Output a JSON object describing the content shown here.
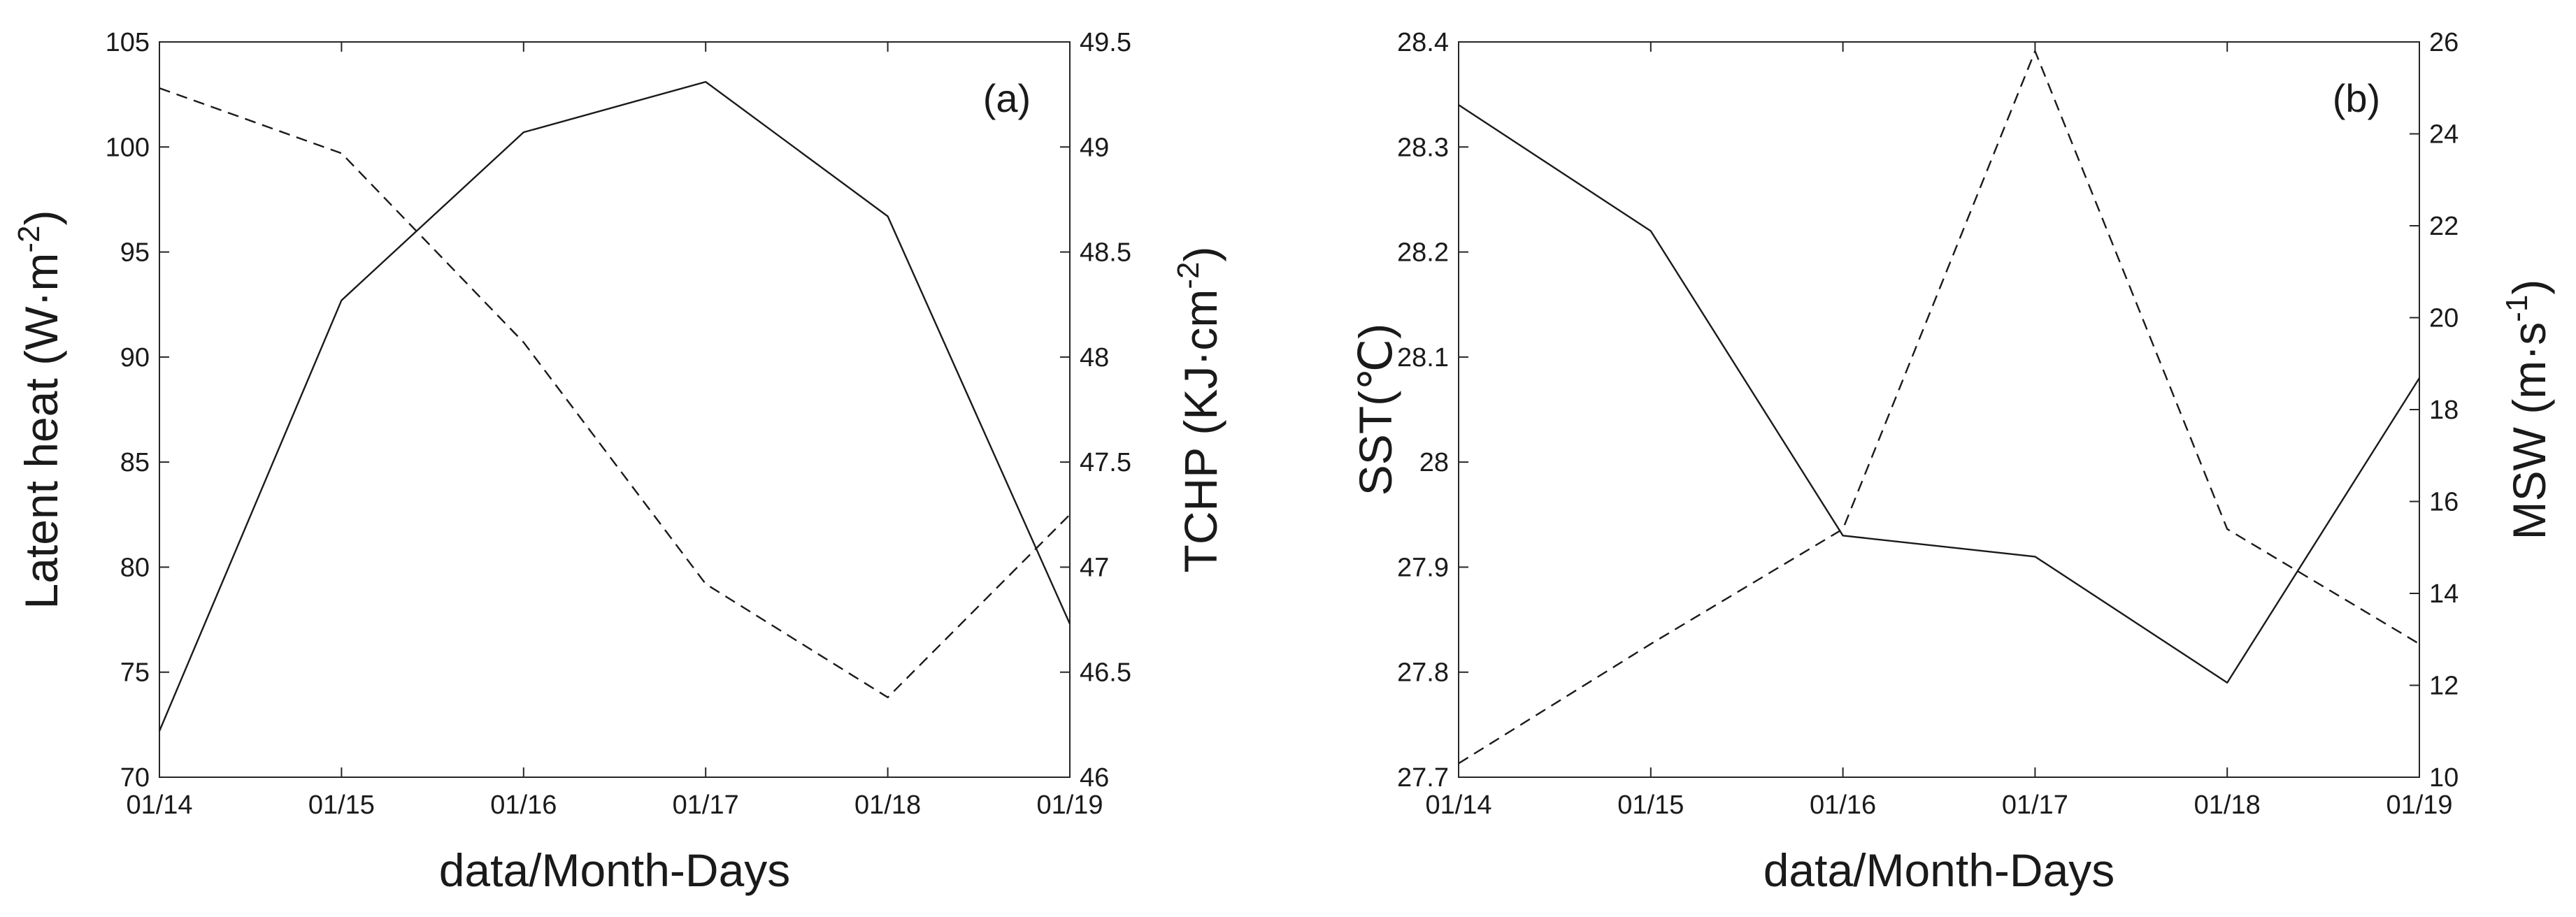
{
  "chart_data": [
    {
      "panel_label": "(a)",
      "type": "line",
      "categories": [
        "01/14",
        "01/15",
        "01/16",
        "01/17",
        "01/18",
        "01/19"
      ],
      "xlabel": "data/Month-Days",
      "ylabel_left": {
        "base": "Latent heat (W·m",
        "sup": "-2",
        "close": ")"
      },
      "ylabel_right": {
        "base": "TCHP (KJ·cm",
        "sup": "-2",
        "close": ")"
      },
      "ylim_left": [
        70,
        105
      ],
      "ylim_right": [
        46,
        49.5
      ],
      "yticks_left": [
        "70",
        "75",
        "80",
        "85",
        "90",
        "95",
        "100",
        "105"
      ],
      "yticks_right": [
        "46",
        "46.5",
        "47",
        "47.5",
        "48",
        "48.5",
        "49",
        "49.5"
      ],
      "series": [
        {
          "axis": "left",
          "style": "solid",
          "values": [
            72.2,
            92.7,
            100.7,
            103.1,
            96.7,
            77.3
          ]
        },
        {
          "axis": "right",
          "style": "dashed",
          "values": [
            49.28,
            48.97,
            48.07,
            46.92,
            46.38,
            47.25
          ]
        }
      ],
      "grid": false
    },
    {
      "panel_label": "(b)",
      "type": "line",
      "categories": [
        "01/14",
        "01/15",
        "01/16",
        "01/17",
        "01/18",
        "01/19"
      ],
      "xlabel": "data/Month-Days",
      "ylabel_left": {
        "base": "SST(℃)",
        "sup": "",
        "close": ""
      },
      "ylabel_right": {
        "base": "MSW (m·s",
        "sup": "-1",
        "close": ")"
      },
      "ylim_left": [
        27.7,
        28.4
      ],
      "ylim_right": [
        10,
        26
      ],
      "yticks_left": [
        "27.7",
        "27.8",
        "27.9",
        "28",
        "28.1",
        "28.2",
        "28.3",
        "28.4"
      ],
      "yticks_right": [
        "10",
        "12",
        "14",
        "16",
        "18",
        "20",
        "22",
        "24",
        "26"
      ],
      "series": [
        {
          "axis": "left",
          "style": "solid",
          "values": [
            28.34,
            28.22,
            27.93,
            27.91,
            27.79,
            28.08
          ]
        },
        {
          "axis": "right",
          "style": "dashed",
          "values": [
            10.3,
            12.9,
            15.4,
            25.8,
            15.4,
            12.9
          ]
        }
      ],
      "grid": false
    }
  ]
}
